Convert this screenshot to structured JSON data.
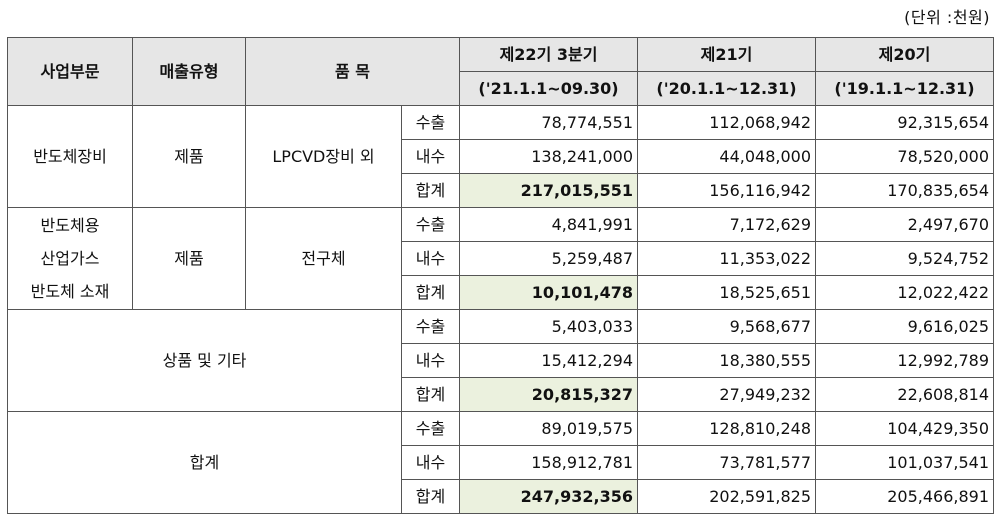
{
  "unit_note": "(단위 :천원)",
  "headers": {
    "division": "사업부문",
    "sales_type": "매출유형",
    "item": "품 목",
    "fy22_line1": "제22기 3분기",
    "fy22_line2": "('21.1.1~09.30)",
    "fy21_line1": "제21기",
    "fy21_line2": "('20.1.1~12.31)",
    "fy20_line1": "제20기",
    "fy20_line2": "('19.1.1~12.31)"
  },
  "groups": [
    {
      "division_lines": [
        "반도체장비"
      ],
      "sales_type": "제품",
      "item": "LPCVD장비 외",
      "rows": [
        {
          "type": "수출",
          "v22": "78,774,551",
          "v21": "112,068,942",
          "v20": "92,315,654"
        },
        {
          "type": "내수",
          "v22": "138,241,000",
          "v21": "44,048,000",
          "v20": "78,520,000"
        },
        {
          "type": "합계",
          "v22": "217,015,551",
          "v21": "156,116,942",
          "v20": "170,835,654"
        }
      ]
    },
    {
      "division_lines": [
        "반도체용",
        "산업가스",
        "반도체 소재"
      ],
      "sales_type": "제품",
      "item": "전구체",
      "rows": [
        {
          "type": "수출",
          "v22": "4,841,991",
          "v21": "7,172,629",
          "v20": "2,497,670"
        },
        {
          "type": "내수",
          "v22": "5,259,487",
          "v21": "11,353,022",
          "v20": "9,524,752"
        },
        {
          "type": "합계",
          "v22": "10,101,478",
          "v21": "18,525,651",
          "v20": "12,022,422"
        }
      ]
    },
    {
      "merged_label": "상품 및 기타",
      "rows": [
        {
          "type": "수출",
          "v22": "5,403,033",
          "v21": "9,568,677",
          "v20": "9,616,025"
        },
        {
          "type": "내수",
          "v22": "15,412,294",
          "v21": "18,380,555",
          "v20": "12,992,789"
        },
        {
          "type": "합계",
          "v22": "20,815,327",
          "v21": "27,949,232",
          "v20": "22,608,814"
        }
      ]
    },
    {
      "merged_label": "합계",
      "rows": [
        {
          "type": "수출",
          "v22": "89,019,575",
          "v21": "128,810,248",
          "v20": "104,429,350"
        },
        {
          "type": "내수",
          "v22": "158,912,781",
          "v21": "73,781,577",
          "v20": "101,037,541"
        },
        {
          "type": "합계",
          "v22": "247,932,356",
          "v21": "202,591,825",
          "v20": "205,466,891"
        }
      ]
    }
  ],
  "colors": {
    "header_bg": "#e6e6e6",
    "highlight_bg": "#ebf1de",
    "border": "#555555"
  }
}
